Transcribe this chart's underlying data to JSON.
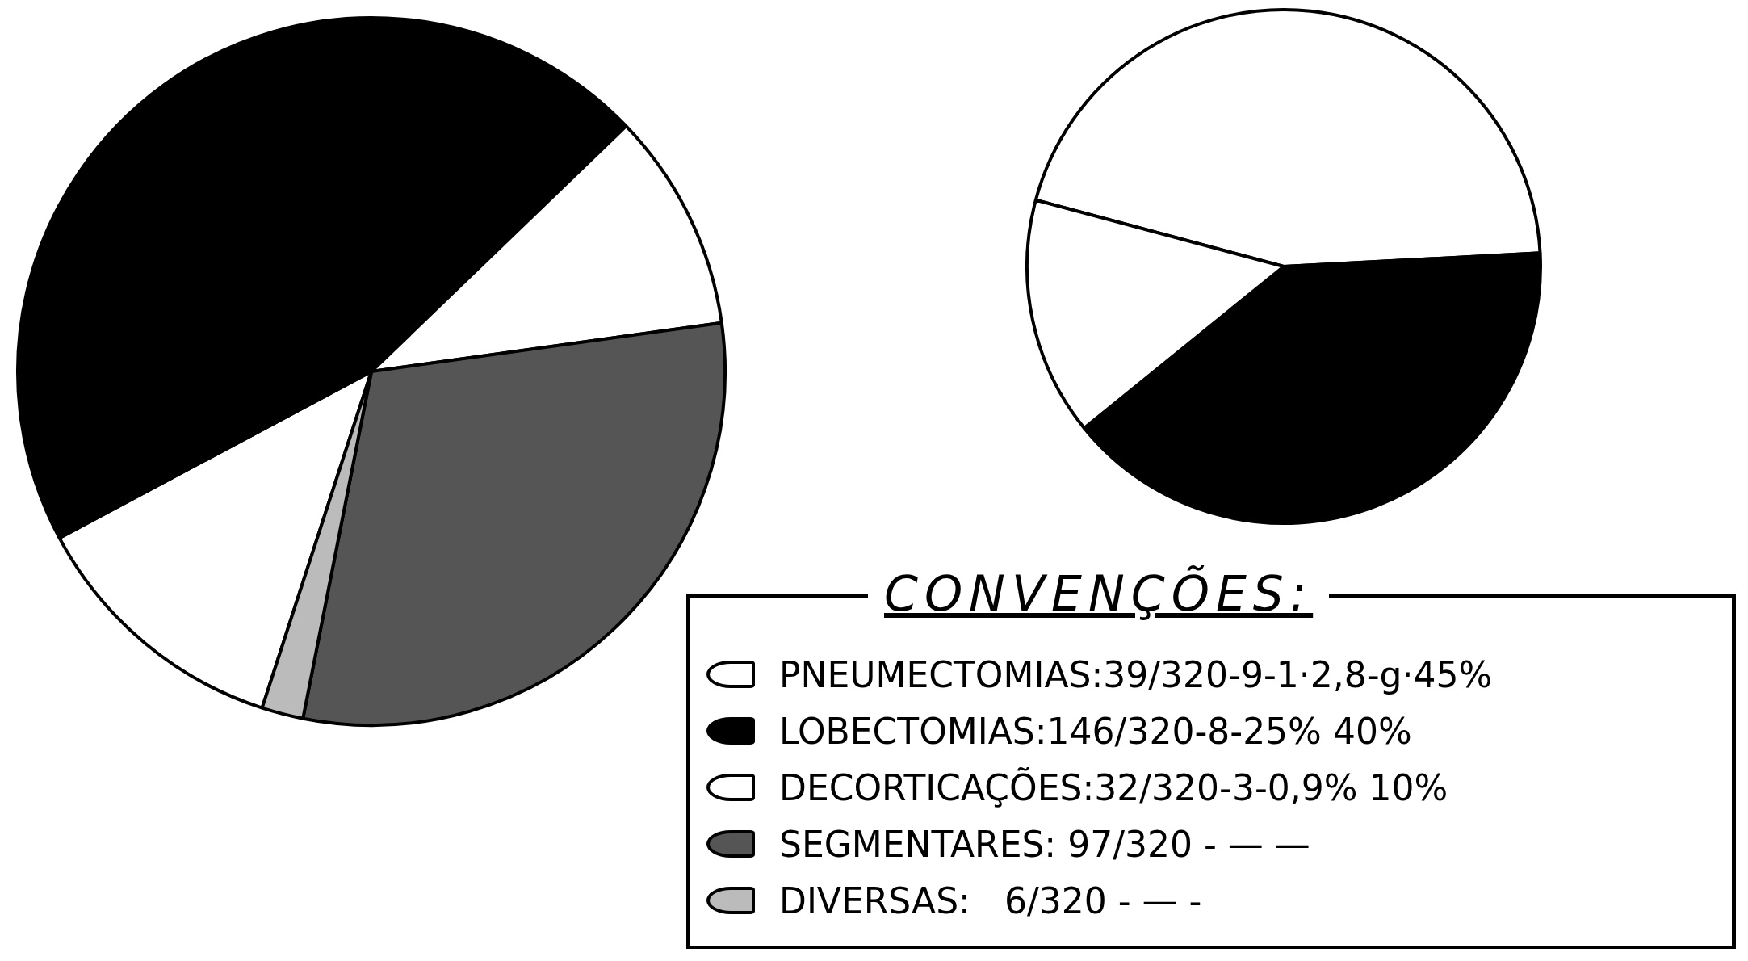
{
  "chart_data": [
    {
      "type": "pie",
      "legend_title": "CONVENÇÕES:",
      "categories": [
        "PNEUMECTOMIAS",
        "LOBECTOMIAS",
        "DECORTICAÇÕES",
        "SEGMENTARES",
        "DIVERSAS"
      ],
      "values": [
        12.2,
        45.6,
        10.0,
        30.3,
        1.9
      ],
      "colors": [
        "#ffffff",
        "#000000",
        "#ffffff",
        "#555555",
        "#bbbbbb"
      ],
      "annotations": [
        ":39/320-9-1·2,8-g·45%",
        ":146/320-8-25% 40%",
        ":32/320-3-0,9% 10%",
        ": 97/320 - — —",
        ":   6/320 - — -"
      ]
    },
    {
      "type": "pie",
      "categories": [
        null,
        null,
        null
      ],
      "values": [
        45,
        40,
        15
      ],
      "colors": [
        "#ffffff",
        "#000000",
        "#ffffff"
      ]
    }
  ]
}
